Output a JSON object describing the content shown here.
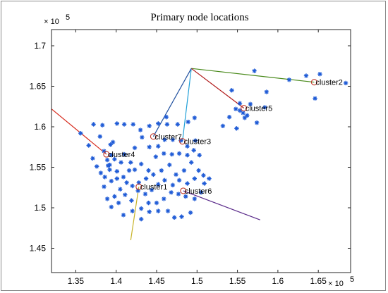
{
  "chart_data": {
    "type": "scatter",
    "title": "Primary node locations",
    "xlabel": "",
    "ylabel": "",
    "x_multiplier_label": "× 10^5",
    "y_multiplier_label": "× 10^5",
    "xlim": [
      1.32,
      1.69
    ],
    "ylim": [
      1.42,
      1.72
    ],
    "x_ticks": [
      1.35,
      1.4,
      1.45,
      1.5,
      1.55,
      1.6,
      1.65
    ],
    "x_tick_labels": [
      "1.35",
      "1.4",
      "1.45",
      "1.5",
      "1.55",
      "1.6",
      "1.65"
    ],
    "y_ticks": [
      1.45,
      1.5,
      1.55,
      1.6,
      1.65,
      1.7
    ],
    "y_tick_labels": [
      "1.45",
      "1.5",
      "1.55",
      "1.6",
      "1.65",
      "1.7"
    ],
    "grid": false,
    "marker_color": "#1f5bd6",
    "hub": {
      "x": 1.493,
      "y": 1.672
    },
    "clusters": [
      {
        "label": "cluster1",
        "x": 1.428,
        "y": 1.526,
        "line_end": {
          "x": 1.418,
          "y": 1.46
        },
        "line_color": "#c8b42a"
      },
      {
        "label": "cluster2",
        "x": 1.645,
        "y": 1.655,
        "line_end": {
          "x": 1.493,
          "y": 1.672
        },
        "line_color": "#4a8a1c"
      },
      {
        "label": "cluster3",
        "x": 1.482,
        "y": 1.582,
        "line_end": {
          "x": 1.493,
          "y": 1.672
        },
        "line_color": "#20a0d8"
      },
      {
        "label": "cluster4",
        "x": 1.388,
        "y": 1.566,
        "line_end": {
          "x": 1.32,
          "y": 1.622
        },
        "line_color": "#d62a1c"
      },
      {
        "label": "cluster5",
        "x": 1.558,
        "y": 1.623,
        "line_end": {
          "x": 1.493,
          "y": 1.672
        },
        "line_color": "#b01818"
      },
      {
        "label": "cluster6",
        "x": 1.483,
        "y": 1.521,
        "line_end": {
          "x": 1.578,
          "y": 1.485
        },
        "line_color": "#5a2a8a"
      },
      {
        "label": "cluster7",
        "x": 1.446,
        "y": 1.588,
        "line_end": {
          "x": 1.493,
          "y": 1.672
        },
        "line_color": "#1f4f9e"
      }
    ],
    "points": [
      [
        1.356,
        1.592
      ],
      [
        1.366,
        1.577
      ],
      [
        1.372,
        1.603
      ],
      [
        1.371,
        1.561
      ],
      [
        1.376,
        1.551
      ],
      [
        1.38,
        1.588
      ],
      [
        1.383,
        1.602
      ],
      [
        1.385,
        1.57
      ],
      [
        1.389,
        1.559
      ],
      [
        1.392,
        1.553
      ],
      [
        1.394,
        1.565
      ],
      [
        1.396,
        1.581
      ],
      [
        1.398,
        1.56
      ],
      [
        1.401,
        1.604
      ],
      [
        1.41,
        1.603
      ],
      [
        1.421,
        1.603
      ],
      [
        1.43,
        1.596
      ],
      [
        1.441,
        1.601
      ],
      [
        1.452,
        1.604
      ],
      [
        1.463,
        1.603
      ],
      [
        1.462,
        1.612
      ],
      [
        1.476,
        1.603
      ],
      [
        1.489,
        1.606
      ],
      [
        1.497,
        1.611
      ],
      [
        1.381,
        1.543
      ],
      [
        1.386,
        1.538
      ],
      [
        1.392,
        1.547
      ],
      [
        1.401,
        1.545
      ],
      [
        1.406,
        1.556
      ],
      [
        1.41,
        1.566
      ],
      [
        1.418,
        1.556
      ],
      [
        1.423,
        1.574
      ],
      [
        1.432,
        1.587
      ],
      [
        1.441,
        1.575
      ],
      [
        1.452,
        1.576
      ],
      [
        1.46,
        1.584
      ],
      [
        1.47,
        1.584
      ],
      [
        1.48,
        1.583
      ],
      [
        1.488,
        1.576
      ],
      [
        1.498,
        1.583
      ],
      [
        1.503,
        1.565
      ],
      [
        1.385,
        1.526
      ],
      [
        1.394,
        1.533
      ],
      [
        1.401,
        1.536
      ],
      [
        1.409,
        1.538
      ],
      [
        1.416,
        1.546
      ],
      [
        1.423,
        1.547
      ],
      [
        1.431,
        1.554
      ],
      [
        1.44,
        1.546
      ],
      [
        1.449,
        1.563
      ],
      [
        1.459,
        1.567
      ],
      [
        1.469,
        1.566
      ],
      [
        1.478,
        1.567
      ],
      [
        1.488,
        1.565
      ],
      [
        1.496,
        1.571
      ],
      [
        1.389,
        1.511
      ],
      [
        1.398,
        1.514
      ],
      [
        1.405,
        1.523
      ],
      [
        1.413,
        1.531
      ],
      [
        1.42,
        1.527
      ],
      [
        1.428,
        1.531
      ],
      [
        1.437,
        1.536
      ],
      [
        1.446,
        1.541
      ],
      [
        1.456,
        1.546
      ],
      [
        1.466,
        1.553
      ],
      [
        1.474,
        1.541
      ],
      [
        1.484,
        1.546
      ],
      [
        1.493,
        1.556
      ],
      [
        1.502,
        1.546
      ],
      [
        1.394,
        1.501
      ],
      [
        1.403,
        1.506
      ],
      [
        1.411,
        1.516
      ],
      [
        1.419,
        1.509
      ],
      [
        1.427,
        1.521
      ],
      [
        1.436,
        1.517
      ],
      [
        1.444,
        1.522
      ],
      [
        1.452,
        1.529
      ],
      [
        1.46,
        1.534
      ],
      [
        1.47,
        1.528
      ],
      [
        1.478,
        1.534
      ],
      [
        1.488,
        1.53
      ],
      [
        1.497,
        1.536
      ],
      [
        1.508,
        1.54
      ],
      [
        1.515,
        1.536
      ],
      [
        1.509,
        1.53
      ],
      [
        1.409,
        1.491
      ],
      [
        1.42,
        1.496
      ],
      [
        1.431,
        1.499
      ],
      [
        1.44,
        1.506
      ],
      [
        1.45,
        1.506
      ],
      [
        1.459,
        1.511
      ],
      [
        1.468,
        1.519
      ],
      [
        1.477,
        1.517
      ],
      [
        1.486,
        1.514
      ],
      [
        1.497,
        1.511
      ],
      [
        1.505,
        1.519
      ],
      [
        1.452,
        1.496
      ],
      [
        1.464,
        1.496
      ],
      [
        1.472,
        1.488
      ],
      [
        1.481,
        1.489
      ],
      [
        1.492,
        1.494
      ],
      [
        1.441,
        1.495
      ],
      [
        1.431,
        1.486
      ],
      [
        1.393,
        1.578
      ],
      [
        1.39,
        1.552
      ],
      [
        1.532,
        1.601
      ],
      [
        1.54,
        1.612
      ],
      [
        1.548,
        1.622
      ],
      [
        1.553,
        1.629
      ],
      [
        1.557,
        1.617
      ],
      [
        1.559,
        1.611
      ],
      [
        1.562,
        1.614
      ],
      [
        1.566,
        1.628
      ],
      [
        1.574,
        1.605
      ],
      [
        1.584,
        1.624
      ],
      [
        1.586,
        1.643
      ],
      [
        1.543,
        1.645
      ],
      [
        1.549,
        1.598
      ],
      [
        1.553,
        1.62
      ],
      [
        1.571,
        1.669
      ],
      [
        1.614,
        1.658
      ],
      [
        1.635,
        1.663
      ],
      [
        1.646,
        1.635
      ],
      [
        1.652,
        1.665
      ],
      [
        1.684,
        1.654
      ]
    ]
  }
}
